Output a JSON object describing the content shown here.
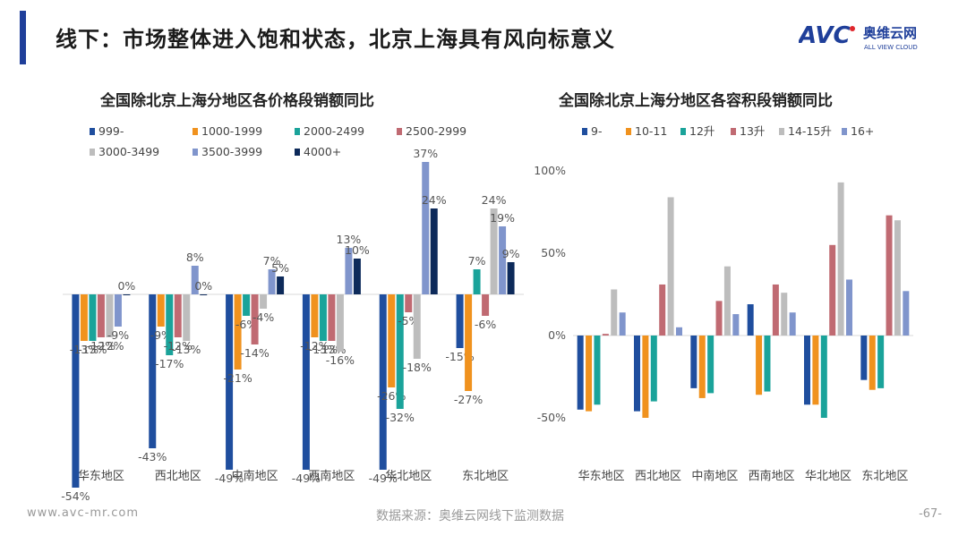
{
  "header": {
    "title": "线下：市场整体进入饱和状态，北京上海具有风向标意义",
    "logo_text": "AVC",
    "logo_cn": "奥维云网",
    "logo_en": "ALL VIEW CLOUD",
    "accent_color": "#1f3f9a",
    "logo_red": "#e0262c"
  },
  "footer": {
    "website": "www.avc-mr.com",
    "source": "数据来源：奥维云网线下监测数据",
    "page_number": "-67-"
  },
  "chart_data": [
    {
      "type": "bar",
      "title": "全国除北京上海分地区各价格段销额同比",
      "categories": [
        "华东地区",
        "西北地区",
        "中南地区",
        "西南地区",
        "华北地区",
        "东北地区"
      ],
      "series": [
        {
          "name": "999-",
          "color": "#1f4e9e",
          "values": [
            -54,
            -43,
            -49,
            -49,
            -49,
            -15
          ]
        },
        {
          "name": "1000-1999",
          "color": "#f0921e",
          "values": [
            -13,
            -9,
            -21,
            -12,
            -26,
            -27
          ]
        },
        {
          "name": "2000-2499",
          "color": "#1aa39a",
          "values": [
            -13,
            -17,
            -6,
            -13,
            -32,
            7
          ]
        },
        {
          "name": "2500-2999",
          "color": "#c06a72",
          "values": [
            -12,
            -12,
            -14,
            -13,
            -5,
            -6
          ]
        },
        {
          "name": "3000-3499",
          "color": "#bdbdbd",
          "values": [
            -12,
            -13,
            -4,
            -16,
            -18,
            24
          ]
        },
        {
          "name": "3500-3999",
          "color": "#8095cc",
          "values": [
            -9,
            8,
            7,
            13,
            37,
            19
          ]
        },
        {
          "name": "4000+",
          "color": "#0d2a5a",
          "values": [
            0,
            0,
            5,
            10,
            24,
            9
          ]
        }
      ],
      "value_format": "percent",
      "data_labels": true
    },
    {
      "type": "bar",
      "title": "全国除北京上海分地区各容积段销额同比",
      "categories": [
        "华东地区",
        "西北地区",
        "中南地区",
        "西南地区",
        "华北地区",
        "东北地区"
      ],
      "series": [
        {
          "name": "9-",
          "color": "#1f4e9e",
          "values": [
            -45,
            -46,
            -32,
            19,
            -42,
            -27
          ]
        },
        {
          "name": "10-11",
          "color": "#f0921e",
          "values": [
            -46,
            -50,
            -38,
            -36,
            -42,
            -33
          ]
        },
        {
          "name": "12升",
          "color": "#1aa39a",
          "values": [
            -42,
            -40,
            -35,
            -34,
            -50,
            -32
          ]
        },
        {
          "name": "13升",
          "color": "#c06a72",
          "values": [
            1,
            31,
            21,
            31,
            55,
            73
          ]
        },
        {
          "name": "14-15升",
          "color": "#bdbdbd",
          "values": [
            28,
            84,
            42,
            26,
            93,
            70
          ]
        },
        {
          "name": "16+",
          "color": "#8095cc",
          "values": [
            14,
            5,
            13,
            14,
            34,
            27
          ]
        }
      ],
      "yticks": [
        "100%",
        "50%",
        "0%",
        "-50%"
      ],
      "ylim": [
        -50,
        100
      ],
      "value_format": "percent",
      "data_labels": false
    }
  ]
}
